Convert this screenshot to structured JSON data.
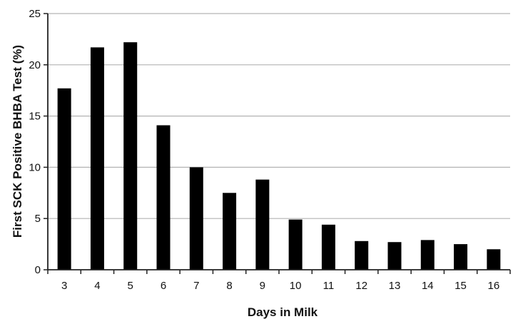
{
  "chart_data": {
    "type": "bar",
    "title": "",
    "xlabel": "Days in Milk",
    "ylabel": "First SCK Positive BHBA Test (%)",
    "categories": [
      "3",
      "4",
      "5",
      "6",
      "7",
      "8",
      "9",
      "10",
      "11",
      "12",
      "13",
      "14",
      "15",
      "16"
    ],
    "values": [
      17.7,
      21.7,
      22.2,
      14.1,
      10.0,
      7.5,
      8.8,
      4.9,
      4.4,
      2.8,
      2.7,
      2.9,
      2.5,
      2.0
    ],
    "ylim": [
      0,
      25
    ],
    "yticks": [
      "0",
      "5",
      "10",
      "15",
      "20",
      "25"
    ],
    "grid": "horizontal",
    "legend": "none",
    "bar_color": "#000000",
    "grid_color": "#b3b3b3",
    "axis_color": "#222222"
  }
}
